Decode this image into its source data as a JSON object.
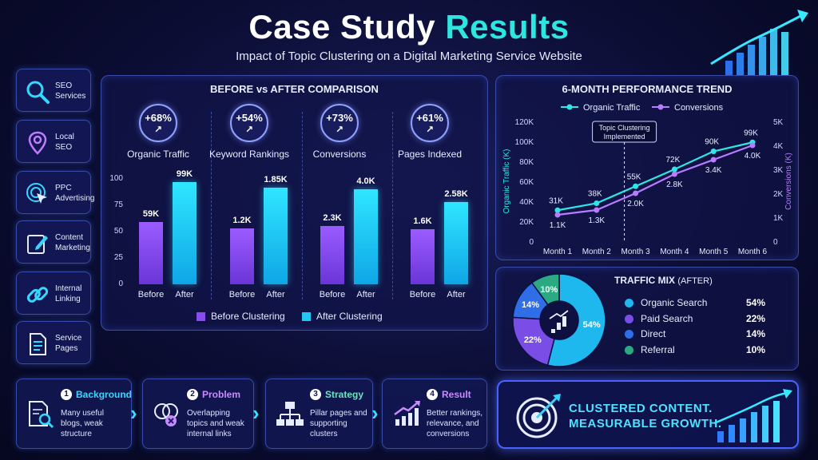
{
  "header": {
    "title_main": "Case Study",
    "title_highlight": "Results",
    "subtitle": "Impact of Topic Clustering on a Digital Marketing Service Website"
  },
  "sidebar": {
    "items": [
      {
        "line1": "SEO",
        "line2": "Services",
        "icon": "magnifier-icon"
      },
      {
        "line1": "Local",
        "line2": "SEO",
        "icon": "map-pin-icon"
      },
      {
        "line1": "PPC",
        "line2": "Advertising",
        "icon": "cursor-click-icon"
      },
      {
        "line1": "Content",
        "line2": "Marketing",
        "icon": "pencil-edit-icon"
      },
      {
        "line1": "Internal",
        "line2": "Linking",
        "icon": "chain-link-icon"
      },
      {
        "line1": "Service",
        "line2": "Pages",
        "icon": "document-icon"
      }
    ]
  },
  "chart_data": [
    {
      "type": "bar",
      "title": "BEFORE vs AFTER COMPARISON",
      "legend": [
        "Before Clustering",
        "After Clustering"
      ],
      "legend_position": "bottom",
      "yticks": [
        0,
        25,
        50,
        75,
        100
      ],
      "ylim": [
        0,
        100
      ],
      "panels": [
        {
          "metric": "Organic Traffic",
          "change": "+68%",
          "before_label": "59K",
          "after_label": "99K",
          "before": 59,
          "after": 97
        },
        {
          "metric": "Keyword Rankings",
          "change": "+54%",
          "before_label": "1.2K",
          "after_label": "1.85K",
          "before": 53,
          "after": 92
        },
        {
          "metric": "Conversions",
          "change": "+73%",
          "before_label": "2.3K",
          "after_label": "4.0K",
          "before": 55,
          "after": 90
        },
        {
          "metric": "Pages Indexed",
          "change": "+61%",
          "before_label": "1.6K",
          "after_label": "2.58K",
          "before": 52,
          "after": 78
        }
      ],
      "categories": [
        "Before",
        "After"
      ]
    },
    {
      "type": "line",
      "title": "6-MONTH PERFORMANCE TREND",
      "x": [
        "Month 1",
        "Month 2",
        "Month 3",
        "Month 4",
        "Month 5",
        "Month 6"
      ],
      "series": [
        {
          "name": "Organic Traffic",
          "values": [
            31,
            38,
            55,
            72,
            90,
            99
          ],
          "labels": [
            "31K",
            "38K",
            "55K",
            "72K",
            "90K",
            "99K"
          ],
          "color": "#2fe6e6",
          "axis": "left"
        },
        {
          "name": "Conversions",
          "values": [
            1.1,
            1.3,
            2.0,
            2.8,
            3.4,
            4.0
          ],
          "labels": [
            "1.1K",
            "1.3K",
            "2.0K",
            "2.8K",
            "3.4K",
            "4.0K"
          ],
          "color": "#b77cff",
          "axis": "right"
        }
      ],
      "ylabel": "Organic Traffic (K)",
      "y2label": "Conversions (K)",
      "yticks": [
        "0",
        "20K",
        "40K",
        "60K",
        "80K",
        "100K",
        "120K"
      ],
      "y2ticks": [
        "0",
        "1K",
        "2K",
        "3K",
        "4K",
        "5K"
      ],
      "ylim": [
        0,
        120
      ],
      "y2lim": [
        0,
        5
      ],
      "annotation": {
        "line1": "Topic Clustering",
        "line2": "Implemented",
        "at": "Month 3"
      },
      "legend_position": "top"
    },
    {
      "type": "pie",
      "title_main": "TRAFFIC MIX",
      "title_note": "(AFTER)",
      "slices": [
        {
          "label": "Organic Search",
          "value": 54,
          "pct": "54%",
          "color": "#1fb8ee"
        },
        {
          "label": "Paid Search",
          "value": 22,
          "pct": "22%",
          "color": "#7a4ee6"
        },
        {
          "label": "Direct",
          "value": 14,
          "pct": "14%",
          "color": "#2f6ee6"
        },
        {
          "label": "Referral",
          "value": 10,
          "pct": "10%",
          "color": "#2aa982"
        }
      ]
    }
  ],
  "steps": [
    {
      "num": "1",
      "title": "Background",
      "desc": "Many useful blogs, weak structure",
      "color": "#38d6ff",
      "icon": "document-search-icon"
    },
    {
      "num": "2",
      "title": "Problem",
      "desc": "Overlapping topics and weak internal links",
      "color": "#c78bff",
      "icon": "overlap-circles-icon"
    },
    {
      "num": "3",
      "title": "Strategy",
      "desc": "Pillar pages and supporting clusters",
      "color": "#6de3c2",
      "icon": "hierarchy-icon"
    },
    {
      "num": "4",
      "title": "Result",
      "desc": "Better rankings, relevance, and conversions",
      "color": "#c78bff",
      "icon": "growth-chart-icon"
    }
  ],
  "banner": {
    "line1": "CLUSTERED CONTENT.",
    "line2": "MEASURABLE GROWTH.",
    "icon": "target-arrow-icon"
  }
}
